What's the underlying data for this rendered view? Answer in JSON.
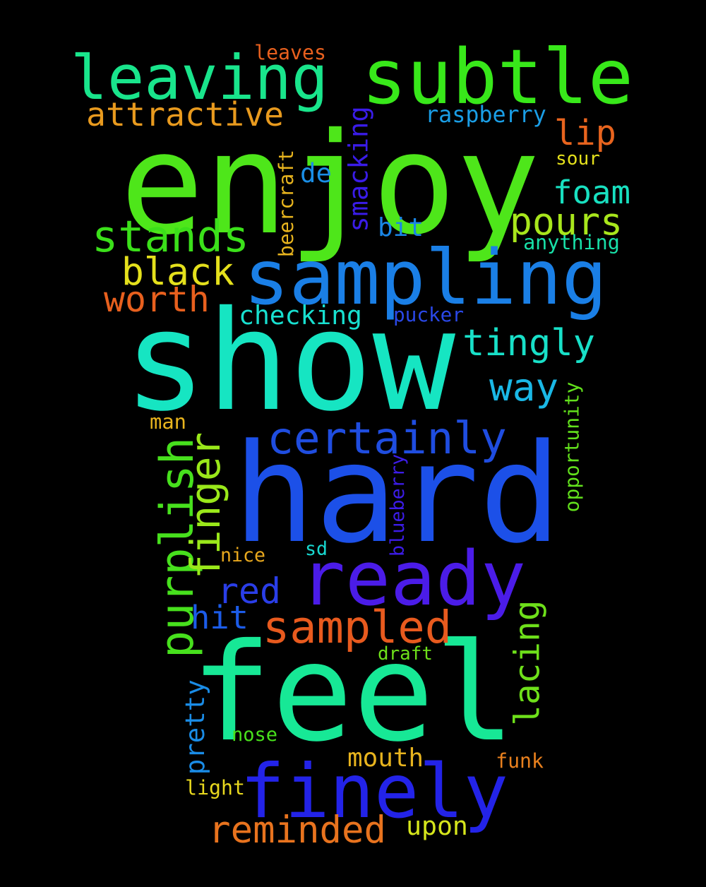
{
  "words": [
    {
      "text": "enjoy",
      "color": "#4ee61a"
    },
    {
      "text": "show",
      "color": "#16e5c2"
    },
    {
      "text": "hard",
      "color": "#1c50e8"
    },
    {
      "text": "feel",
      "color": "#17e896"
    },
    {
      "text": "sampling",
      "color": "#1a7fe6"
    },
    {
      "text": "subtle",
      "color": "#38e81a"
    },
    {
      "text": "leaving",
      "color": "#19e58c"
    },
    {
      "text": "ready",
      "color": "#4b1ce8"
    },
    {
      "text": "finely",
      "color": "#2323e8"
    },
    {
      "text": "certainly",
      "color": "#1f4de0"
    },
    {
      "text": "purplish",
      "color": "#47e01d"
    },
    {
      "text": "sampled",
      "color": "#e85a1e"
    },
    {
      "text": "reminded",
      "color": "#e8731e"
    },
    {
      "text": "stands",
      "color": "#3be01a"
    },
    {
      "text": "tingly",
      "color": "#18e0c8"
    },
    {
      "text": "finger",
      "color": "#9ae81a"
    },
    {
      "text": "pours",
      "color": "#a8e61c"
    },
    {
      "text": "attractive",
      "color": "#e89a1e"
    },
    {
      "text": "worth",
      "color": "#e8601e"
    },
    {
      "text": "black",
      "color": "#e4e01c"
    },
    {
      "text": "lacing",
      "color": "#6ee01a"
    },
    {
      "text": "foam",
      "color": "#18e0c0"
    },
    {
      "text": "lip",
      "color": "#e8641e"
    },
    {
      "text": "way",
      "color": "#1ab8e6"
    },
    {
      "text": "checking",
      "color": "#18e0d0"
    },
    {
      "text": "red",
      "color": "#2a3ee8"
    },
    {
      "text": "hit",
      "color": "#1c5ce8"
    },
    {
      "text": "mouth",
      "color": "#e8b41e"
    },
    {
      "text": "smacking",
      "color": "#3a1ce8"
    },
    {
      "text": "upon",
      "color": "#d6e61c"
    },
    {
      "text": "pretty",
      "color": "#1a8ce6"
    },
    {
      "text": "raspberry",
      "color": "#1a9ee6"
    },
    {
      "text": "bit",
      "color": "#1a86e6"
    },
    {
      "text": "opportunity",
      "color": "#62e01c"
    },
    {
      "text": "blueberry",
      "color": "#3c1ce8"
    },
    {
      "text": "de",
      "color": "#1a8ee6"
    },
    {
      "text": "anything",
      "color": "#18e0a8"
    },
    {
      "text": "pucker",
      "color": "#2a48e8"
    },
    {
      "text": "beercraft",
      "color": "#e8b41e"
    },
    {
      "text": "leaves",
      "color": "#e8601e"
    },
    {
      "text": "sour",
      "color": "#e4e01c"
    },
    {
      "text": "draft",
      "color": "#6ee01a"
    },
    {
      "text": "funk",
      "color": "#e8801e"
    },
    {
      "text": "nose",
      "color": "#48e01c"
    },
    {
      "text": "light",
      "color": "#e8d81e"
    },
    {
      "text": "man",
      "color": "#e8b41e"
    },
    {
      "text": "nice",
      "color": "#e8a81e"
    },
    {
      "text": "sd",
      "color": "#18d8d0"
    }
  ]
}
